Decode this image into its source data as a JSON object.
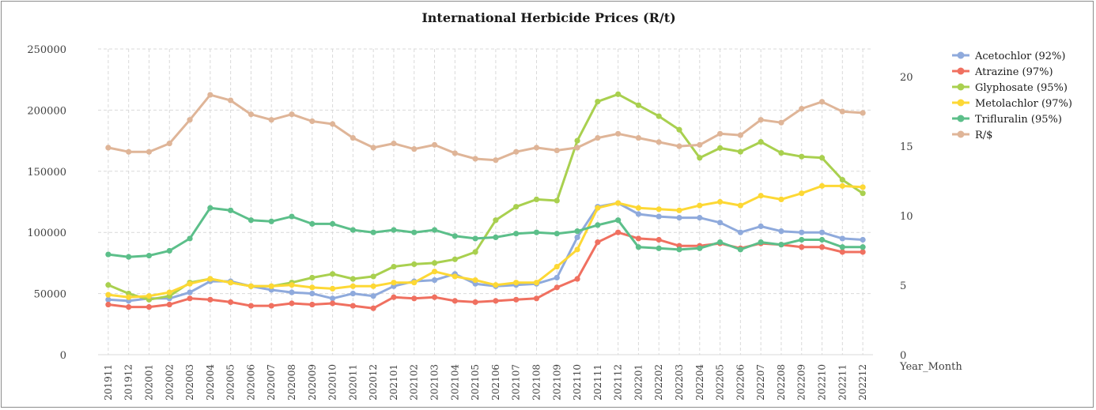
{
  "chart_data": {
    "type": "line",
    "title": "International Herbicide Prices (R/t)",
    "xlabel": "Year_Month",
    "ylabel": "",
    "ylim": [
      0,
      250000
    ],
    "yticks": [
      0,
      50000,
      100000,
      150000,
      200000,
      250000
    ],
    "ylim_right": [
      0,
      22
    ],
    "yticks_right": [
      0,
      5,
      10,
      15,
      20
    ],
    "grid": true,
    "legend_position": "right",
    "categories": [
      "201911",
      "201912",
      "202001",
      "202002",
      "202003",
      "202004",
      "202005",
      "202006",
      "202007",
      "202008",
      "202009",
      "202010",
      "202011",
      "202012",
      "202101",
      "202102",
      "202103",
      "202104",
      "202105",
      "202106",
      "202107",
      "202108",
      "202109",
      "202110",
      "202111",
      "202112",
      "202201",
      "202202",
      "202203",
      "202204",
      "202205",
      "202206",
      "202207",
      "202208",
      "202209",
      "202210",
      "202211",
      "202212"
    ],
    "series": [
      {
        "name": "Acetochlor (92%)",
        "color": "#8faadc",
        "axis": "left",
        "values": [
          45000,
          44000,
          46000,
          46000,
          51000,
          60000,
          60000,
          56000,
          53000,
          51000,
          50000,
          46000,
          50000,
          48000,
          56000,
          60000,
          61000,
          66000,
          58000,
          56000,
          57000,
          58000,
          63000,
          96000,
          121000,
          124000,
          115000,
          113000,
          112000,
          112000,
          108000,
          100000,
          105000,
          101000,
          100000,
          100000,
          95000,
          94000
        ]
      },
      {
        "name": "Atrazine (97%)",
        "color": "#f07060",
        "axis": "left",
        "values": [
          41000,
          39000,
          39000,
          41000,
          46000,
          45000,
          43000,
          40000,
          40000,
          42000,
          41000,
          42000,
          40000,
          38000,
          47000,
          46000,
          47000,
          44000,
          43000,
          44000,
          45000,
          46000,
          55000,
          62000,
          92000,
          100000,
          95000,
          94000,
          89000,
          89000,
          91000,
          87000,
          91000,
          90000,
          88000,
          88000,
          84000,
          84000
        ]
      },
      {
        "name": "Glyphosate (95%)",
        "color": "#a9d04f",
        "axis": "left",
        "values": [
          57000,
          50000,
          45000,
          48000,
          59000,
          62000,
          59000,
          56000,
          56000,
          59000,
          63000,
          66000,
          62000,
          64000,
          72000,
          74000,
          75000,
          78000,
          84000,
          110000,
          121000,
          127000,
          126000,
          175000,
          207000,
          213000,
          204000,
          195000,
          184000,
          161000,
          169000,
          166000,
          174000,
          165000,
          162000,
          161000,
          143000,
          132000
        ]
      },
      {
        "name": "Metolachlor (97%)",
        "color": "#fdd835",
        "axis": "left",
        "values": [
          49000,
          47000,
          48000,
          51000,
          58000,
          62000,
          59000,
          56000,
          56000,
          57000,
          55000,
          54000,
          56000,
          56000,
          59000,
          59000,
          68000,
          64000,
          61000,
          57000,
          59000,
          59000,
          72000,
          86000,
          120000,
          124000,
          120000,
          119000,
          118000,
          122000,
          125000,
          122000,
          130000,
          127000,
          132000,
          138000,
          138000,
          137000
        ]
      },
      {
        "name": "Trifluralin (95%)",
        "color": "#5cbf8a",
        "axis": "left",
        "values": [
          82000,
          80000,
          81000,
          85000,
          95000,
          120000,
          118000,
          110000,
          109000,
          113000,
          107000,
          107000,
          102000,
          100000,
          102000,
          100000,
          102000,
          97000,
          95000,
          96000,
          99000,
          100000,
          99000,
          101000,
          106000,
          110000,
          88000,
          87000,
          86000,
          87000,
          92000,
          86000,
          92000,
          90000,
          94000,
          94000,
          88000,
          88000
        ]
      },
      {
        "name": "R/$",
        "color": "#dfb598",
        "axis": "right",
        "values": [
          14.9,
          14.6,
          14.6,
          15.2,
          16.9,
          18.7,
          18.3,
          17.3,
          16.9,
          17.3,
          16.8,
          16.6,
          15.6,
          14.9,
          15.2,
          14.8,
          15.1,
          14.5,
          14.1,
          14.0,
          14.6,
          14.9,
          14.7,
          14.9,
          15.6,
          15.9,
          15.6,
          15.3,
          15.0,
          15.1,
          15.9,
          15.8,
          16.9,
          16.7,
          17.7,
          18.2,
          17.5,
          17.4
        ]
      }
    ]
  }
}
